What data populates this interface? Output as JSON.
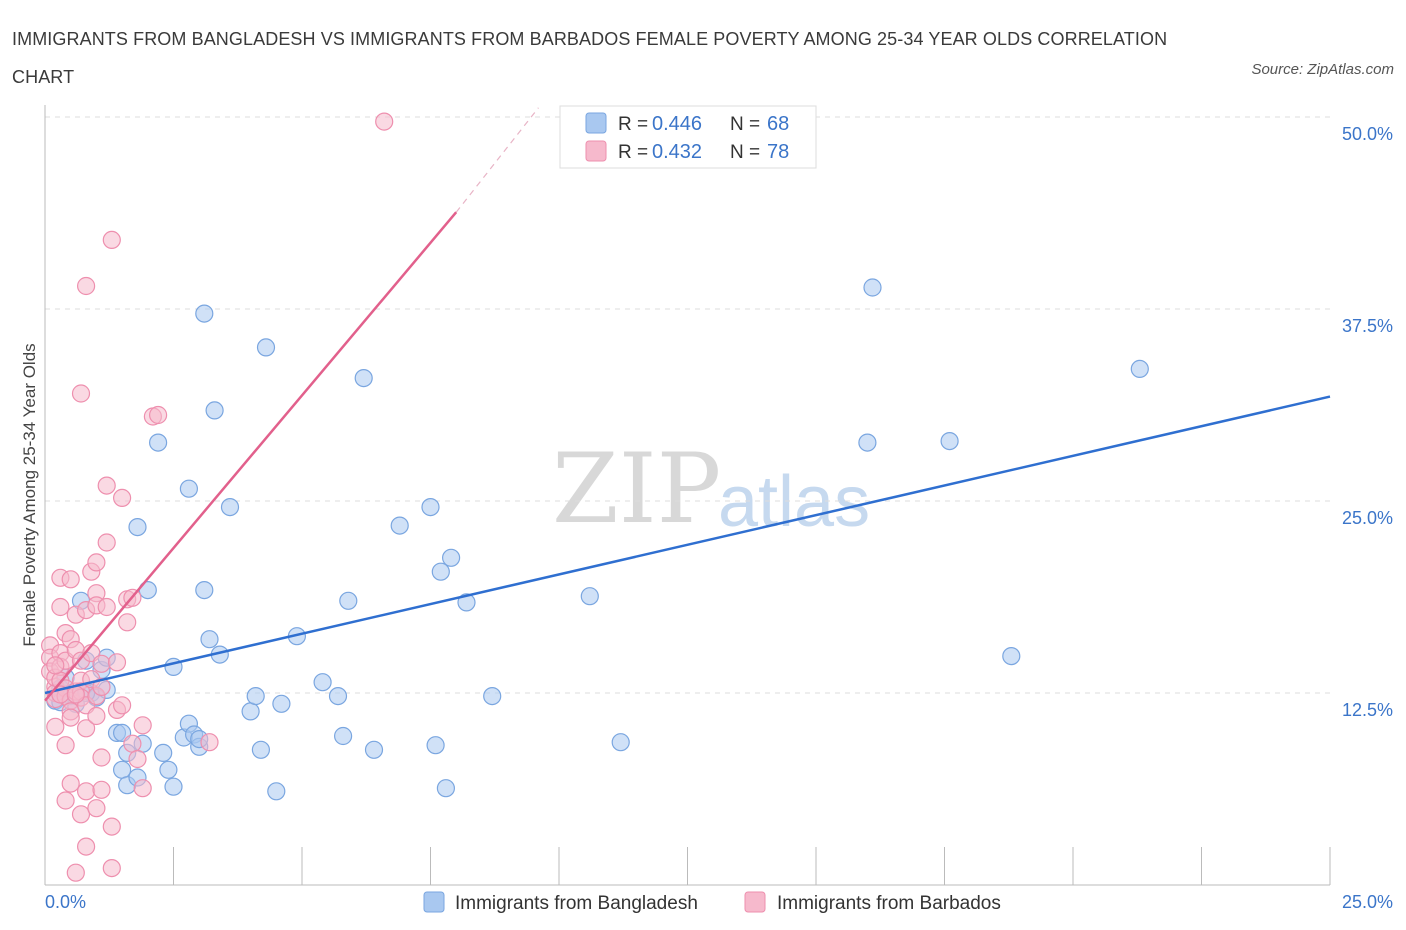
{
  "title": "IMMIGRANTS FROM BANGLADESH VS IMMIGRANTS FROM BARBADOS FEMALE POVERTY AMONG 25-34 YEAR OLDS CORRELATION CHART",
  "source": "Source: ZipAtlas.com",
  "watermark": {
    "zip": "ZIP",
    "atlas": "atlas"
  },
  "colors": {
    "bangladesh_fill": "#a9c8f0",
    "bangladesh_stroke": "#7aa6e0",
    "bangladesh_line": "#2f6fd0",
    "barbados_fill": "#f6b9cc",
    "barbados_stroke": "#ee8fae",
    "barbados_line": "#e2608c",
    "axis_label": "#3b75c9",
    "grid": "#dddddd"
  },
  "legend": {
    "r_label": "R =",
    "n_label": "N =",
    "series": [
      {
        "name": "Immigrants from Bangladesh",
        "r": "0.446",
        "n": "68"
      },
      {
        "name": "Immigrants from Barbados",
        "r": "0.432",
        "n": "78"
      }
    ]
  },
  "chart_data": {
    "type": "scatter",
    "title": "IMMIGRANTS FROM BANGLADESH VS IMMIGRANTS FROM BARBADOS FEMALE POVERTY AMONG 25-34 YEAR OLDS CORRELATION CHART",
    "xlabel": "",
    "ylabel": "Female Poverty Among 25-34 Year Olds",
    "xlim": [
      0,
      25
    ],
    "ylim": [
      0,
      50
    ],
    "x_tick_labels": [
      "0.0%",
      "25.0%"
    ],
    "y_ticks": [
      12.5,
      25.0,
      37.5,
      50.0
    ],
    "y_tick_labels": [
      "12.5%",
      "25.0%",
      "37.5%",
      "50.0%"
    ],
    "grid": true,
    "legend_position": "top-center",
    "series": [
      {
        "name": "Immigrants from Bangladesh",
        "regression": {
          "x": [
            0,
            25
          ],
          "y": [
            12.5,
            31.8
          ]
        },
        "points": [
          [
            0.2,
            12.0
          ],
          [
            0.3,
            12.8
          ],
          [
            0.4,
            13.5
          ],
          [
            0.5,
            12.3
          ],
          [
            0.6,
            11.8
          ],
          [
            0.7,
            18.5
          ],
          [
            0.8,
            14.6
          ],
          [
            0.9,
            12.5
          ],
          [
            1.0,
            12.2
          ],
          [
            1.1,
            14.0
          ],
          [
            1.2,
            12.7
          ],
          [
            1.2,
            14.8
          ],
          [
            1.4,
            9.9
          ],
          [
            1.5,
            9.9
          ],
          [
            1.6,
            8.6
          ],
          [
            1.5,
            7.5
          ],
          [
            1.6,
            6.5
          ],
          [
            1.8,
            7.0
          ],
          [
            1.8,
            23.3
          ],
          [
            1.9,
            9.2
          ],
          [
            2.0,
            19.2
          ],
          [
            2.2,
            28.8
          ],
          [
            2.3,
            8.6
          ],
          [
            2.4,
            7.5
          ],
          [
            2.5,
            6.4
          ],
          [
            2.5,
            14.2
          ],
          [
            2.7,
            9.6
          ],
          [
            2.8,
            25.8
          ],
          [
            2.8,
            10.5
          ],
          [
            2.9,
            9.8
          ],
          [
            3.0,
            9.0
          ],
          [
            3.0,
            9.5
          ],
          [
            3.1,
            37.2
          ],
          [
            3.1,
            19.2
          ],
          [
            3.2,
            16.0
          ],
          [
            3.3,
            30.9
          ],
          [
            3.4,
            15.0
          ],
          [
            3.6,
            24.6
          ],
          [
            4.0,
            11.3
          ],
          [
            4.1,
            12.3
          ],
          [
            4.2,
            8.8
          ],
          [
            4.3,
            35.0
          ],
          [
            4.5,
            6.1
          ],
          [
            4.6,
            11.8
          ],
          [
            4.9,
            16.2
          ],
          [
            5.4,
            13.2
          ],
          [
            5.7,
            12.3
          ],
          [
            5.8,
            9.7
          ],
          [
            5.9,
            18.5
          ],
          [
            6.2,
            33.0
          ],
          [
            6.4,
            8.8
          ],
          [
            6.9,
            23.4
          ],
          [
            7.5,
            24.6
          ],
          [
            7.6,
            9.1
          ],
          [
            7.7,
            20.4
          ],
          [
            7.8,
            6.3
          ],
          [
            7.9,
            21.3
          ],
          [
            8.2,
            18.4
          ],
          [
            8.7,
            12.3
          ],
          [
            10.6,
            18.8
          ],
          [
            11.2,
            9.3
          ],
          [
            16.1,
            38.9
          ],
          [
            16.0,
            28.8
          ],
          [
            17.6,
            28.9
          ],
          [
            18.8,
            14.9
          ],
          [
            21.3,
            33.6
          ],
          [
            0.3,
            11.9
          ],
          [
            0.8,
            12.5
          ]
        ]
      },
      {
        "name": "Immigrants from Barbados",
        "regression": {
          "x": [
            0,
            8.0
          ],
          "y": [
            12.0,
            43.8
          ]
        },
        "regression_extension": {
          "x": [
            8.0,
            9.6
          ],
          "y": [
            43.8,
            50.6
          ]
        },
        "points": [
          [
            0.1,
            15.6
          ],
          [
            0.1,
            14.8
          ],
          [
            0.1,
            13.9
          ],
          [
            0.2,
            12.9
          ],
          [
            0.2,
            12.5
          ],
          [
            0.2,
            12.1
          ],
          [
            0.2,
            13.5
          ],
          [
            0.2,
            10.3
          ],
          [
            0.3,
            18.1
          ],
          [
            0.3,
            20.0
          ],
          [
            0.3,
            15.1
          ],
          [
            0.3,
            14.2
          ],
          [
            0.3,
            13.3
          ],
          [
            0.4,
            16.4
          ],
          [
            0.4,
            12.8
          ],
          [
            0.4,
            12.3
          ],
          [
            0.4,
            9.1
          ],
          [
            0.4,
            14.6
          ],
          [
            0.4,
            5.5
          ],
          [
            0.5,
            19.9
          ],
          [
            0.5,
            12.0
          ],
          [
            0.5,
            11.3
          ],
          [
            0.5,
            10.9
          ],
          [
            0.5,
            6.6
          ],
          [
            0.5,
            16.0
          ],
          [
            0.6,
            15.3
          ],
          [
            0.6,
            17.6
          ],
          [
            0.6,
            12.6
          ],
          [
            0.6,
            0.8
          ],
          [
            0.7,
            14.6
          ],
          [
            0.7,
            13.3
          ],
          [
            0.7,
            12.6
          ],
          [
            0.7,
            12.2
          ],
          [
            0.7,
            4.6
          ],
          [
            0.7,
            32.0
          ],
          [
            0.8,
            17.9
          ],
          [
            0.8,
            11.7
          ],
          [
            0.8,
            10.2
          ],
          [
            0.8,
            2.5
          ],
          [
            0.8,
            6.1
          ],
          [
            0.8,
            39.0
          ],
          [
            0.9,
            20.4
          ],
          [
            0.9,
            15.1
          ],
          [
            0.9,
            13.4
          ],
          [
            1.0,
            19.0
          ],
          [
            1.0,
            18.2
          ],
          [
            1.0,
            11.0
          ],
          [
            1.0,
            5.0
          ],
          [
            1.0,
            12.3
          ],
          [
            1.0,
            21.0
          ],
          [
            1.1,
            14.4
          ],
          [
            1.1,
            12.9
          ],
          [
            1.1,
            6.2
          ],
          [
            1.1,
            8.3
          ],
          [
            1.2,
            26.0
          ],
          [
            1.2,
            18.1
          ],
          [
            1.2,
            22.3
          ],
          [
            1.3,
            42.0
          ],
          [
            1.3,
            1.1
          ],
          [
            1.3,
            3.8
          ],
          [
            1.4,
            11.4
          ],
          [
            1.4,
            14.5
          ],
          [
            1.5,
            25.2
          ],
          [
            1.5,
            11.7
          ],
          [
            1.6,
            17.1
          ],
          [
            1.6,
            18.6
          ],
          [
            1.7,
            18.7
          ],
          [
            1.7,
            9.2
          ],
          [
            1.8,
            8.2
          ],
          [
            1.9,
            10.4
          ],
          [
            1.9,
            6.3
          ],
          [
            2.1,
            30.5
          ],
          [
            2.2,
            30.6
          ],
          [
            3.2,
            9.3
          ],
          [
            6.6,
            49.7
          ],
          [
            0.2,
            14.3
          ],
          [
            0.3,
            12.4
          ],
          [
            0.6,
            12.4
          ]
        ]
      }
    ]
  }
}
